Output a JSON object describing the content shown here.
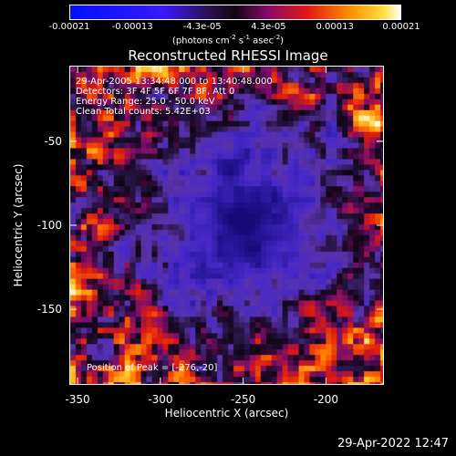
{
  "colorbar": {
    "ticks": [
      {
        "label": "-0.00021",
        "pos": 0.0
      },
      {
        "label": "-0.00013",
        "pos": 0.19
      },
      {
        "label": "-4.3e-05",
        "pos": 0.4
      },
      {
        "label": "4.3e-05",
        "pos": 0.6
      },
      {
        "label": "0.00013",
        "pos": 0.8
      },
      {
        "label": "0.00021",
        "pos": 1.0
      }
    ],
    "units_prefix": "(photons cm",
    "units_exp1": "-2",
    "units_mid": " s",
    "units_exp2": "-1",
    "units_mid2": " asec",
    "units_exp3": "-2",
    "units_suffix": ")"
  },
  "title": "Reconstructed RHESSI Image",
  "info_lines": [
    "29-Apr-2005 13:34:48.000 to 13:40:48.000",
    "Detectors: 3F 4F 5F 6F 7F 8F, Att 0",
    "Energy Range: 25.0 - 50.0 keV",
    "Clean    Total counts: 5.42E+03"
  ],
  "peak_text": "Position of Peak = [-276,-20]",
  "x_axis": {
    "label": "Heliocentric X (arcsec)",
    "ticks": [
      "-350",
      "-300",
      "-250",
      "-200"
    ],
    "values": [
      -350,
      -300,
      -250,
      -200
    ],
    "range": [
      -355,
      -165
    ]
  },
  "y_axis": {
    "label": "Heliocentric Y (arcsec)",
    "ticks": [
      "-50",
      "-100",
      "-150"
    ],
    "values": [
      -50,
      -100,
      -150
    ],
    "range": [
      -195,
      -5
    ]
  },
  "timestamp": "29-Apr-2022 12:47",
  "colors": {
    "background": "#000000",
    "colormap": [
      "#0000ff",
      "#4b0082",
      "#3a1a6a",
      "#7a1a8a",
      "#cc1a10",
      "#ff6a00",
      "#ffb000",
      "#ffffff"
    ]
  }
}
